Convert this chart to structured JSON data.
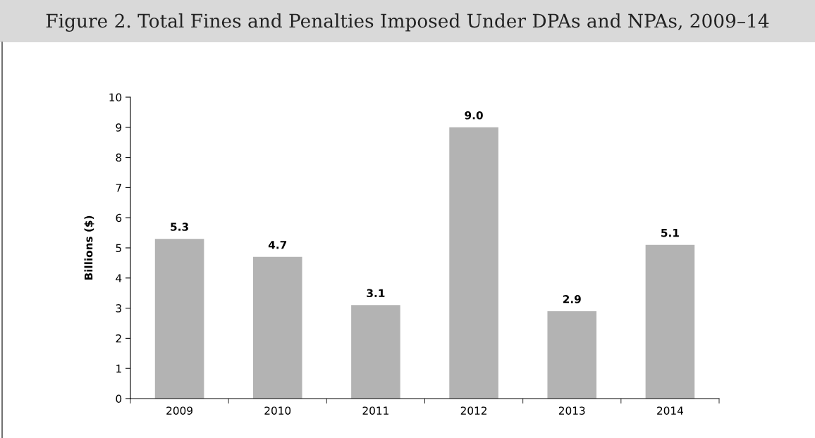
{
  "chart_data": {
    "type": "bar",
    "title": "Figure 2. Total Fines and Penalties Imposed Under DPAs and NPAs, 2009–14",
    "ylabel": "Billions ($)",
    "categories": [
      "2009",
      "2010",
      "2011",
      "2012",
      "2013",
      "2014"
    ],
    "values": [
      5.3,
      4.7,
      3.1,
      9.0,
      2.9,
      5.1
    ],
    "value_labels": [
      "5.3",
      "4.7",
      "3.1",
      "9.0",
      "2.9",
      "5.1"
    ],
    "color": "#b3b3b3",
    "ylim": [
      0,
      10
    ],
    "yticks": [
      0,
      1,
      2,
      3,
      4,
      5,
      6,
      7,
      8,
      9,
      10
    ],
    "grid": false,
    "legend": false
  }
}
